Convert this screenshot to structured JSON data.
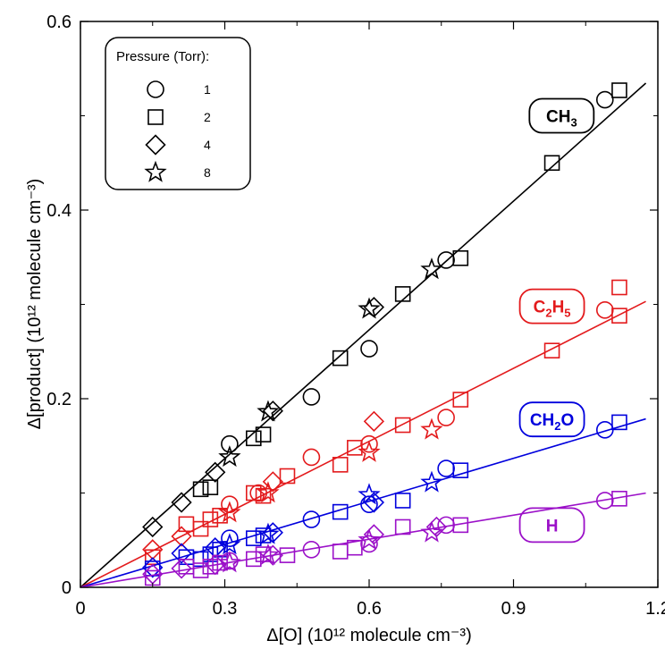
{
  "chart_data": {
    "type": "scatter",
    "xlabel": "Δ[O] (10¹² molecule cm⁻³)",
    "ylabel": "Δ[product] (10¹² molecule cm⁻³)",
    "xlim": [
      0,
      1.2
    ],
    "ylim": [
      0,
      0.6
    ],
    "x_ticks": [
      "0",
      "0.3",
      "0.6",
      "0.9",
      "1.2"
    ],
    "y_ticks": [
      "0",
      "0.2",
      "0.4",
      "0.6"
    ],
    "grid": false,
    "legend": {
      "title": "Pressure (Torr):",
      "placement": "top-left",
      "entries": [
        {
          "marker": "circle",
          "label": "1"
        },
        {
          "marker": "square",
          "label": "2"
        },
        {
          "marker": "diamond",
          "label": "4"
        },
        {
          "marker": "star",
          "label": "8"
        }
      ]
    },
    "series": [
      {
        "name": "CH3",
        "label_main": "CH",
        "label_sub": "3",
        "label_rest": "",
        "label_sub2": "",
        "color": "#000000",
        "label_border_color": "#000000",
        "label_x": 1.0,
        "label_y": 0.5,
        "fit_slope": 0.455,
        "fit_xmax": 1.175,
        "points": {
          "circle": [
            [
              0.31,
              0.152
            ],
            [
              0.48,
              0.202
            ],
            [
              0.6,
              0.253
            ],
            [
              0.76,
              0.347
            ],
            [
              1.09,
              0.517
            ]
          ],
          "square": [
            [
              0.25,
              0.104
            ],
            [
              0.27,
              0.106
            ],
            [
              0.36,
              0.158
            ],
            [
              0.38,
              0.162
            ],
            [
              0.54,
              0.243
            ],
            [
              0.67,
              0.311
            ],
            [
              0.79,
              0.349
            ],
            [
              0.98,
              0.45
            ],
            [
              1.12,
              0.527
            ]
          ],
          "diamond": [
            [
              0.15,
              0.064
            ],
            [
              0.21,
              0.09
            ],
            [
              0.28,
              0.122
            ],
            [
              0.4,
              0.187
            ],
            [
              0.61,
              0.297
            ]
          ],
          "star": [
            [
              0.31,
              0.138
            ],
            [
              0.39,
              0.186
            ],
            [
              0.6,
              0.295
            ],
            [
              0.73,
              0.337
            ]
          ]
        }
      },
      {
        "name": "C2H5",
        "label_main": "C",
        "label_sub": "2",
        "label_rest": "H",
        "label_sub2": "5",
        "color": "#e31a1c",
        "label_border_color": "#e31a1c",
        "label_x": 0.98,
        "label_y": 0.298,
        "fit_slope": 0.258,
        "fit_xmax": 1.175,
        "points": {
          "circle": [
            [
              0.31,
              0.088
            ],
            [
              0.37,
              0.1
            ],
            [
              0.48,
              0.138
            ],
            [
              0.6,
              0.152
            ],
            [
              0.76,
              0.18
            ],
            [
              1.09,
              0.294
            ]
          ],
          "square": [
            [
              0.15,
              0.032
            ],
            [
              0.22,
              0.067
            ],
            [
              0.25,
              0.062
            ],
            [
              0.27,
              0.072
            ],
            [
              0.29,
              0.076
            ],
            [
              0.36,
              0.1
            ],
            [
              0.38,
              0.097
            ],
            [
              0.43,
              0.118
            ],
            [
              0.54,
              0.13
            ],
            [
              0.57,
              0.148
            ],
            [
              0.67,
              0.172
            ],
            [
              0.79,
              0.199
            ],
            [
              0.98,
              0.251
            ],
            [
              1.12,
              0.288
            ],
            [
              1.12,
              0.318
            ]
          ],
          "diamond": [
            [
              0.15,
              0.04
            ],
            [
              0.21,
              0.054
            ],
            [
              0.4,
              0.112
            ],
            [
              0.61,
              0.176
            ]
          ],
          "star": [
            [
              0.31,
              0.079
            ],
            [
              0.39,
              0.1
            ],
            [
              0.6,
              0.143
            ],
            [
              0.73,
              0.167
            ]
          ]
        }
      },
      {
        "name": "CH2O",
        "label_main": "CH",
        "label_sub": "2",
        "label_rest": "O",
        "label_sub2": "",
        "color": "#0000dd",
        "label_border_color": "#0000dd",
        "label_x": 0.98,
        "label_y": 0.178,
        "fit_slope": 0.152,
        "fit_xmax": 1.175,
        "points": {
          "circle": [
            [
              0.31,
              0.052
            ],
            [
              0.48,
              0.072
            ],
            [
              0.6,
              0.088
            ],
            [
              0.76,
              0.126
            ],
            [
              1.09,
              0.167
            ]
          ],
          "square": [
            [
              0.15,
              0.02
            ],
            [
              0.22,
              0.032
            ],
            [
              0.25,
              0.03
            ],
            [
              0.27,
              0.035
            ],
            [
              0.29,
              0.04
            ],
            [
              0.36,
              0.052
            ],
            [
              0.38,
              0.055
            ],
            [
              0.54,
              0.08
            ],
            [
              0.67,
              0.092
            ],
            [
              0.79,
              0.124
            ],
            [
              1.12,
              0.175
            ]
          ],
          "diamond": [
            [
              0.15,
              0.021
            ],
            [
              0.21,
              0.036
            ],
            [
              0.28,
              0.042
            ],
            [
              0.4,
              0.058
            ],
            [
              0.61,
              0.09
            ]
          ],
          "star": [
            [
              0.31,
              0.045
            ],
            [
              0.39,
              0.056
            ],
            [
              0.6,
              0.098
            ],
            [
              0.73,
              0.111
            ]
          ]
        }
      },
      {
        "name": "H",
        "label_main": "H",
        "label_sub": "",
        "label_rest": "",
        "label_sub2": "",
        "color": "#9b10c8",
        "label_border_color": "#9b10c8",
        "label_x": 0.98,
        "label_y": 0.066,
        "fit_slope": 0.085,
        "fit_xmax": 1.175,
        "points": {
          "circle": [
            [
              0.31,
              0.028
            ],
            [
              0.48,
              0.04
            ],
            [
              0.6,
              0.046
            ],
            [
              0.76,
              0.066
            ],
            [
              1.09,
              0.092
            ]
          ],
          "square": [
            [
              0.15,
              0.01
            ],
            [
              0.22,
              0.022
            ],
            [
              0.25,
              0.018
            ],
            [
              0.27,
              0.022
            ],
            [
              0.29,
              0.026
            ],
            [
              0.36,
              0.03
            ],
            [
              0.38,
              0.035
            ],
            [
              0.43,
              0.034
            ],
            [
              0.54,
              0.038
            ],
            [
              0.57,
              0.042
            ],
            [
              0.67,
              0.064
            ],
            [
              0.79,
              0.066
            ],
            [
              1.12,
              0.094
            ]
          ],
          "diamond": [
            [
              0.15,
              0.014
            ],
            [
              0.21,
              0.02
            ],
            [
              0.28,
              0.024
            ],
            [
              0.4,
              0.034
            ],
            [
              0.61,
              0.056
            ],
            [
              0.74,
              0.064
            ]
          ],
          "star": [
            [
              0.31,
              0.026
            ],
            [
              0.39,
              0.034
            ],
            [
              0.6,
              0.05
            ],
            [
              0.73,
              0.058
            ]
          ]
        }
      }
    ]
  }
}
